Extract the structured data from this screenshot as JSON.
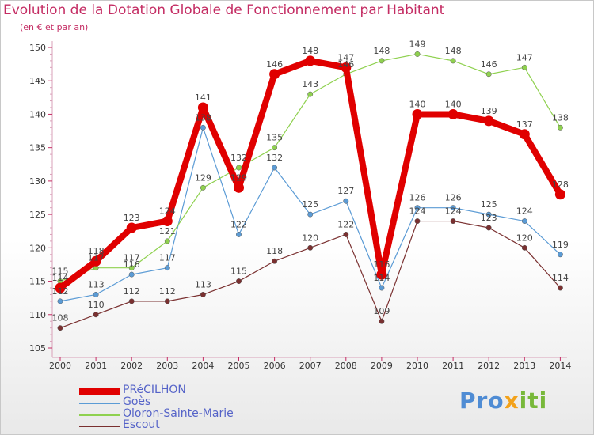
{
  "title": "Evolution de la Dotation Globale de Fonctionnement par Habitant",
  "subtitle": "(en € et par an)",
  "logo": {
    "part1": "Pro",
    "part2": "x",
    "part3": "iti"
  },
  "chart_data": {
    "type": "line",
    "x": [
      2000,
      2001,
      2002,
      2003,
      2004,
      2005,
      2006,
      2007,
      2008,
      2009,
      2010,
      2011,
      2012,
      2013,
      2014
    ],
    "ylim": [
      105,
      150
    ],
    "yticks": [
      105,
      110,
      115,
      120,
      125,
      130,
      135,
      140,
      145,
      150
    ],
    "grid": false,
    "legend_position": "bottom-left",
    "series": [
      {
        "name": "PRéCILHON",
        "color": "#e00000",
        "values": [
          114,
          118,
          123,
          124,
          141,
          129,
          146,
          148,
          147,
          116,
          140,
          140,
          139,
          137,
          128
        ]
      },
      {
        "name": "Goès",
        "color": "#5b9bd5",
        "values": [
          112,
          113,
          116,
          117,
          138,
          122,
          132,
          125,
          127,
          114,
          126,
          126,
          125,
          124,
          119
        ]
      },
      {
        "name": "Oloron-Sainte-Marie",
        "color": "#8fd14f",
        "values": [
          115,
          117,
          117,
          121,
          129,
          132,
          135,
          143,
          146,
          148,
          149,
          148,
          146,
          147,
          138
        ]
      },
      {
        "name": "Escout",
        "color": "#7a3030",
        "values": [
          108,
          110,
          112,
          112,
          113,
          115,
          118,
          120,
          122,
          109,
          124,
          124,
          123,
          120,
          114
        ]
      }
    ]
  }
}
